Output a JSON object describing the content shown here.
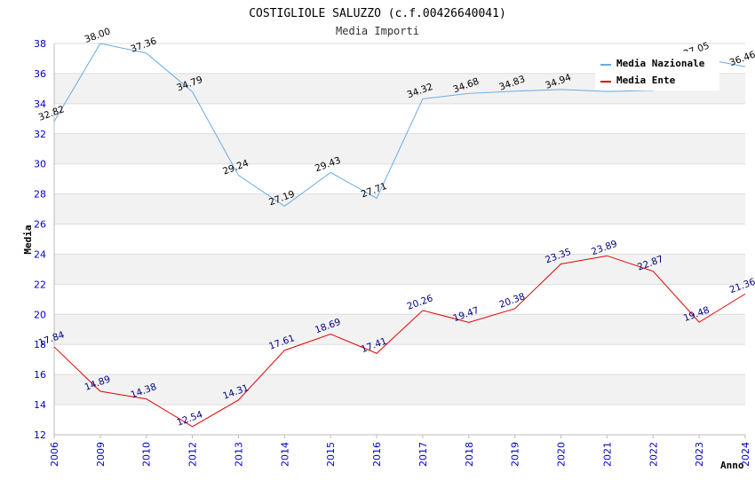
{
  "chart_data": {
    "type": "line",
    "title": "COSTIGLIOLE SALUZZO (c.f.00426640041)",
    "subtitle": "Media Importi",
    "xlabel": "Anno",
    "ylabel": "Media",
    "ylim": [
      12,
      38
    ],
    "yticks": [
      12,
      14,
      16,
      18,
      20,
      22,
      24,
      26,
      28,
      30,
      32,
      34,
      36,
      38
    ],
    "grid": true,
    "legend_position": "top-right",
    "categories": [
      "2006",
      "2009",
      "2010",
      "2012",
      "2013",
      "2014",
      "2015",
      "2016",
      "2017",
      "2018",
      "2019",
      "2020",
      "2021",
      "2022",
      "2023",
      "2024"
    ],
    "series": [
      {
        "name": "Media Nazionale",
        "color": "#6aaae4",
        "values": [
          32.82,
          38.0,
          37.36,
          34.79,
          29.24,
          27.19,
          29.43,
          27.71,
          34.32,
          34.68,
          34.83,
          34.94,
          34.81,
          34.88,
          37.05,
          36.46
        ],
        "labels": [
          "32.82",
          "38.00",
          "37.36",
          "34.79",
          "29.24",
          "27.19",
          "29.43",
          "27.71",
          "34.32",
          "34.68",
          "34.83",
          "34.94",
          "",
          "",
          "37.05",
          "36.46"
        ]
      },
      {
        "name": "Media Ente",
        "color": "#e00000",
        "values": [
          17.84,
          14.89,
          14.38,
          12.54,
          14.31,
          17.61,
          18.69,
          17.41,
          20.26,
          19.47,
          20.38,
          23.35,
          23.89,
          22.87,
          19.48,
          21.36
        ],
        "labels": [
          "17.84",
          "14.89",
          "14.38",
          "12.54",
          "14.31",
          "17.61",
          "18.69",
          "17.41",
          "20.26",
          "19.47",
          "20.38",
          "23.35",
          "23.89",
          "22.87",
          "19.48",
          "21.36"
        ]
      }
    ]
  }
}
